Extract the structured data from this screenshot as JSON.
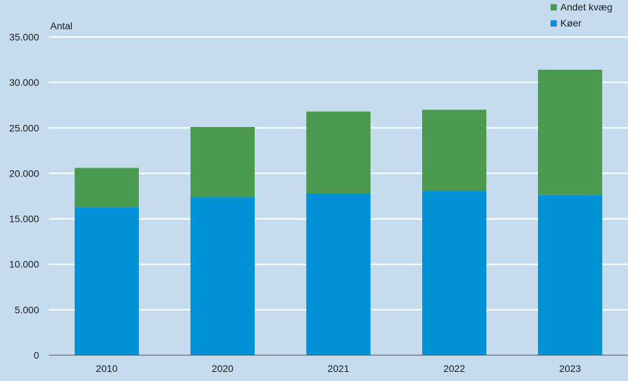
{
  "chart_data": {
    "type": "bar",
    "stacked": true,
    "categories": [
      "2010",
      "2020",
      "2021",
      "2022",
      "2023"
    ],
    "series": [
      {
        "name": "Køer",
        "color": "#0091d6",
        "values": [
          16300,
          17400,
          17800,
          18100,
          17600
        ]
      },
      {
        "name": "Andet kvæg",
        "color": "#4a9a50",
        "values": [
          4300,
          7700,
          9000,
          8900,
          13800
        ]
      }
    ],
    "ylabel": "Antal",
    "ylim": [
      0,
      35000
    ],
    "yticks": [
      0,
      5000,
      10000,
      15000,
      20000,
      25000,
      30000,
      35000
    ],
    "ytick_labels": [
      "0",
      "5.000",
      "10.000",
      "15.000",
      "20.000",
      "25.000",
      "30.000",
      "35.000"
    ],
    "grid": true,
    "legend_position": "top-right",
    "background": "#c5dcef"
  }
}
